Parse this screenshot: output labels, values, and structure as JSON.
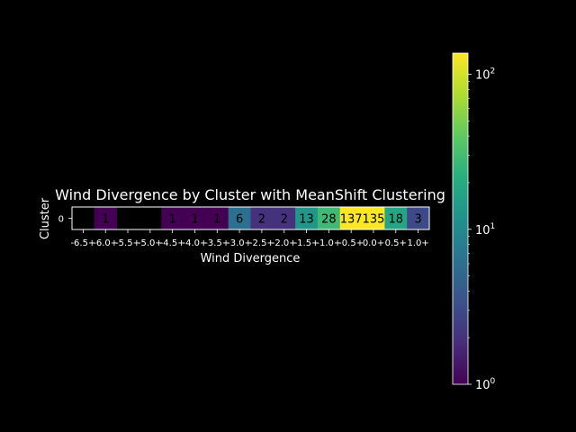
{
  "chart_data": {
    "type": "heatmap",
    "title": "Wind Divergence by Cluster with MeanShift Clustering",
    "xlabel": "Wind Divergence",
    "ylabel": "Cluster",
    "rows": [
      "0"
    ],
    "categories": [
      "-6.5+",
      "-6.0+",
      "-5.5+",
      "-5.0+",
      "-4.5+",
      "-4.0+",
      "-3.5+",
      "-3.0+",
      "-2.5+",
      "-2.0+",
      "-1.5+",
      "-1.0+",
      "-0.5+",
      "0.0+",
      "0.5+",
      "1.0+"
    ],
    "values": [
      [
        null,
        1,
        null,
        null,
        1,
        1,
        1,
        6,
        2,
        2,
        13,
        28,
        137,
        135,
        18,
        3
      ]
    ],
    "cell_labels": [
      [
        "",
        "1",
        "",
        "",
        "1",
        "1",
        "1",
        "6",
        "2",
        "2",
        "13",
        "28",
        "137",
        "135",
        "18",
        "3"
      ]
    ],
    "colorbar": {
      "scale": "log",
      "colormap": "viridis",
      "range": [
        1,
        137
      ],
      "ticks": [
        1,
        10,
        100
      ],
      "tick_base": "10",
      "tick_exponents": [
        "0",
        "1",
        "2"
      ]
    }
  }
}
